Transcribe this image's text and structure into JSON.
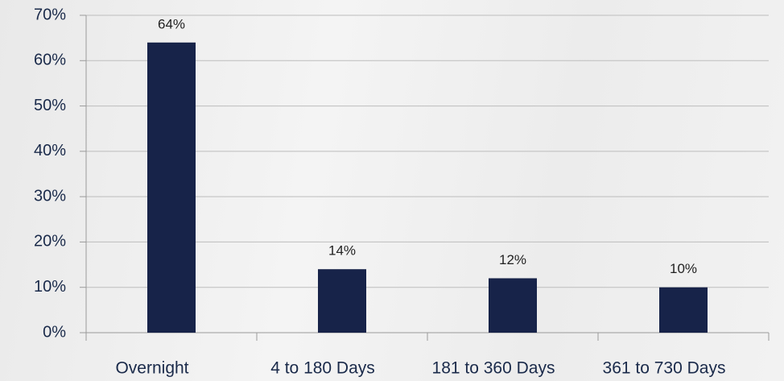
{
  "chart_data": {
    "type": "bar",
    "categories": [
      "Overnight",
      "4 to 180 Days",
      "181 to 360 Days",
      "361 to 730 Days"
    ],
    "values": [
      64,
      14,
      12,
      10
    ],
    "value_labels": [
      "64%",
      "14%",
      "12%",
      "10%"
    ],
    "color": "#172349",
    "ylim": [
      0,
      70
    ],
    "yticks": [
      {
        "value": 0,
        "label": "0%"
      },
      {
        "value": 10,
        "label": "10%"
      },
      {
        "value": 20,
        "label": "20%"
      },
      {
        "value": 30,
        "label": "30%"
      },
      {
        "value": 40,
        "label": "40%"
      },
      {
        "value": 50,
        "label": "50%"
      },
      {
        "value": 60,
        "label": "60%"
      },
      {
        "value": 70,
        "label": "70%"
      }
    ],
    "grid": true
  }
}
